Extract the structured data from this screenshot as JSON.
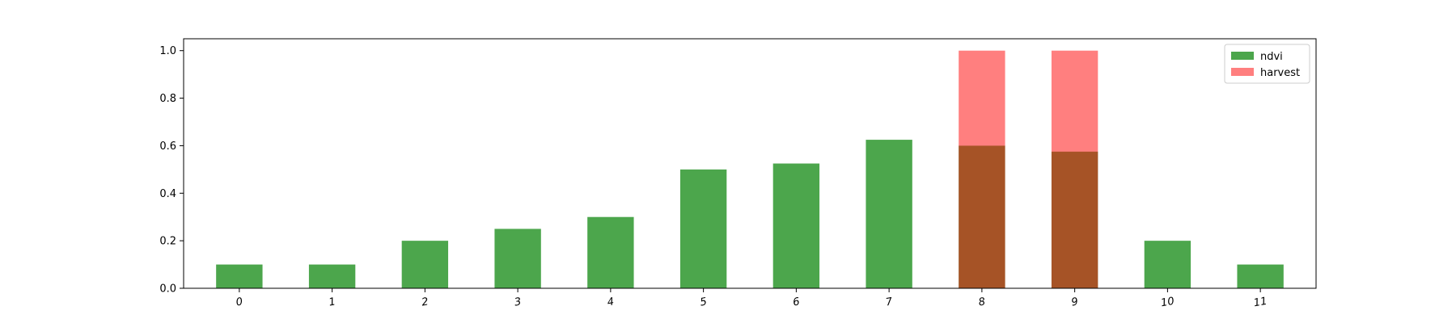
{
  "chart_data": {
    "type": "bar",
    "categories": [
      "0",
      "1",
      "2",
      "3",
      "4",
      "5",
      "6",
      "7",
      "8",
      "9",
      "10",
      "11"
    ],
    "series": [
      {
        "name": "ndvi",
        "values": [
          0.1,
          0.1,
          0.2,
          0.25,
          0.3,
          0.5,
          0.525,
          0.625,
          0.6,
          0.575,
          0.2,
          0.1
        ],
        "color": "#008000",
        "opacity": 0.7
      },
      {
        "name": "harvest",
        "values": [
          0,
          0,
          0,
          0,
          0,
          0,
          0,
          0,
          1.0,
          1.0,
          0,
          0
        ],
        "color": "#ff0000",
        "opacity": 0.5
      }
    ],
    "ylim": [
      0,
      1.05
    ],
    "yticks": [
      "0.0",
      "0.2",
      "0.4",
      "0.6",
      "0.8",
      "1.0"
    ],
    "title": "",
    "xlabel": "",
    "ylabel": "",
    "grid": false,
    "legend": "top-right",
    "bar_overlap": true
  }
}
